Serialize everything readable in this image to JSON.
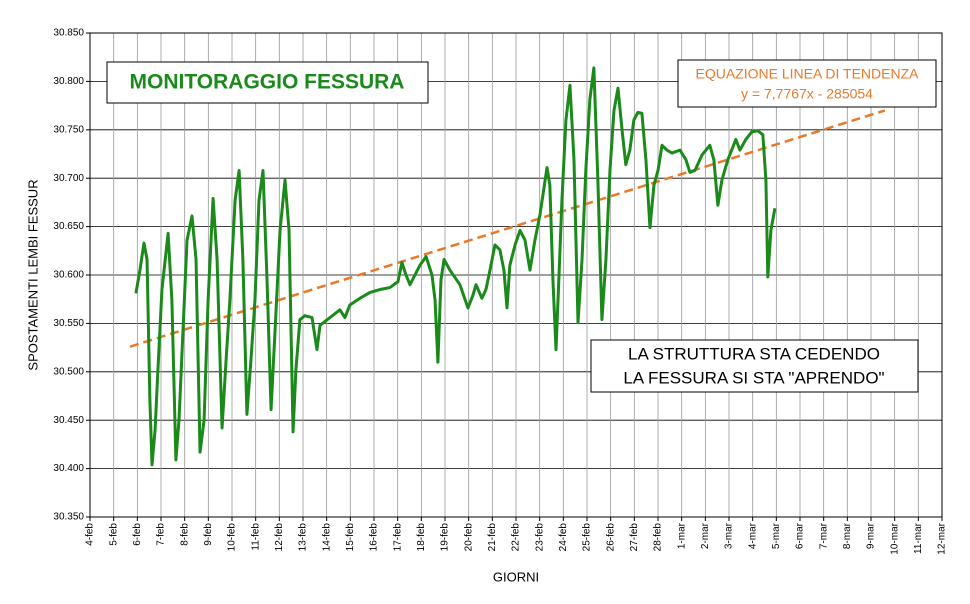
{
  "chart_data": {
    "type": "line",
    "title": "MONITORAGGIO FESSURA",
    "xlabel": "GIORNI",
    "ylabel": "SPOSTAMENTI LEMBI FESSUR",
    "annotations": {
      "equation_title": "EQUAZIONE LINEA DI TENDENZA",
      "equation": "y = 7,7767x - 285054",
      "note_line1": "LA STRUTTURA STA CEDENDO",
      "note_line2": "LA FESSURA SI STA \"APRENDO\""
    },
    "color": "#1a8a1a",
    "x": [
      1.94,
      2.11,
      2.28,
      2.41,
      2.53,
      2.62,
      2.75,
      2.87,
      3.04,
      3.3,
      3.46,
      3.63,
      3.76,
      3.93,
      4.1,
      4.31,
      4.48,
      4.65,
      4.82,
      4.99,
      5.2,
      5.37,
      5.58,
      5.75,
      5.91,
      6.13,
      6.3,
      6.46,
      6.63,
      6.8,
      6.97,
      7.14,
      7.31,
      7.48,
      7.65,
      7.82,
      8.03,
      8.24,
      8.41,
      8.58,
      8.7,
      8.87,
      9.08,
      9.38,
      9.59,
      9.72,
      10.14,
      10.56,
      10.77,
      10.98,
      11.41,
      11.83,
      12.25,
      12.67,
      13.01,
      13.18,
      13.35,
      13.52,
      13.73,
      13.94,
      14.2,
      14.45,
      14.58,
      14.7,
      14.83,
      14.96,
      15.21,
      15.63,
      15.97,
      16.18,
      16.31,
      16.56,
      16.73,
      16.9,
      17.11,
      17.32,
      17.49,
      17.62,
      17.74,
      17.96,
      18.17,
      18.38,
      18.59,
      18.8,
      19.01,
      19.14,
      19.31,
      19.43,
      19.56,
      19.69,
      19.81,
      19.94,
      20.11,
      20.28,
      20.45,
      20.62,
      20.79,
      20.95,
      21.12,
      21.29,
      21.46,
      21.63,
      21.8,
      21.97,
      22.14,
      22.31,
      22.48,
      22.64,
      22.81,
      22.98,
      23.15,
      23.32,
      23.49,
      23.66,
      23.83,
      24.0,
      24.17,
      24.38,
      24.59,
      24.93,
      25.18,
      25.35,
      25.56,
      25.86,
      26.19,
      26.36,
      26.53,
      26.7,
      26.95,
      27.29,
      27.46,
      27.71,
      27.97,
      28.22,
      28.43,
      28.56,
      28.64,
      28.77,
      28.94
    ],
    "values": [
      30.581,
      30.605,
      30.633,
      30.616,
      30.471,
      30.404,
      30.44,
      30.502,
      30.585,
      30.643,
      30.574,
      30.409,
      30.45,
      30.543,
      30.636,
      30.661,
      30.616,
      30.417,
      30.45,
      30.574,
      30.679,
      30.616,
      30.442,
      30.512,
      30.574,
      30.677,
      30.708,
      30.616,
      30.456,
      30.512,
      30.574,
      30.677,
      30.708,
      30.595,
      30.461,
      30.543,
      30.646,
      30.698,
      30.646,
      30.438,
      30.502,
      30.554,
      30.558,
      30.556,
      30.523,
      30.548,
      30.556,
      30.564,
      30.556,
      30.569,
      30.576,
      30.582,
      30.585,
      30.587,
      30.593,
      30.613,
      30.6,
      30.59,
      30.6,
      30.61,
      30.619,
      30.6,
      30.574,
      30.51,
      30.595,
      30.616,
      30.605,
      30.59,
      30.566,
      30.579,
      30.59,
      30.576,
      30.585,
      30.605,
      30.631,
      30.626,
      30.605,
      30.566,
      30.61,
      30.631,
      30.646,
      30.636,
      30.605,
      30.636,
      30.662,
      30.683,
      30.711,
      30.693,
      30.595,
      30.523,
      30.595,
      30.677,
      30.76,
      30.796,
      30.719,
      30.551,
      30.616,
      30.708,
      30.781,
      30.814,
      30.698,
      30.554,
      30.616,
      30.708,
      30.77,
      30.793,
      30.75,
      30.714,
      30.729,
      30.76,
      30.768,
      30.767,
      30.719,
      30.649,
      30.693,
      30.708,
      30.734,
      30.729,
      30.726,
      30.729,
      30.719,
      30.706,
      30.708,
      30.724,
      30.734,
      30.719,
      30.672,
      30.698,
      30.719,
      30.74,
      30.729,
      30.74,
      30.748,
      30.749,
      30.745,
      30.698,
      30.598,
      30.646,
      30.669
    ],
    "trendline": {
      "color": "#e8792a",
      "x": [
        1.69,
        33.59
      ],
      "values": [
        30.526,
        30.77
      ]
    },
    "xlim": [
      0,
      36
    ],
    "xticks": [
      {
        "value": 0,
        "label": "4-feb"
      },
      {
        "value": 1,
        "label": "5-feb"
      },
      {
        "value": 2,
        "label": "6-feb"
      },
      {
        "value": 3,
        "label": "7-feb"
      },
      {
        "value": 4,
        "label": "8-feb"
      },
      {
        "value": 5,
        "label": "9-feb"
      },
      {
        "value": 6,
        "label": "10-feb"
      },
      {
        "value": 7,
        "label": "11-feb"
      },
      {
        "value": 8,
        "label": "12-feb"
      },
      {
        "value": 9,
        "label": "13-feb"
      },
      {
        "value": 10,
        "label": "14-feb"
      },
      {
        "value": 11,
        "label": "15-feb"
      },
      {
        "value": 12,
        "label": "16-feb"
      },
      {
        "value": 13,
        "label": "17-feb"
      },
      {
        "value": 14,
        "label": "18-feb"
      },
      {
        "value": 15,
        "label": "19-feb"
      },
      {
        "value": 16,
        "label": "20-feb"
      },
      {
        "value": 17,
        "label": "21-feb"
      },
      {
        "value": 18,
        "label": "22-feb"
      },
      {
        "value": 19,
        "label": "23-feb"
      },
      {
        "value": 20,
        "label": "24-feb"
      },
      {
        "value": 21,
        "label": "25-feb"
      },
      {
        "value": 22,
        "label": "26-feb"
      },
      {
        "value": 23,
        "label": "27-feb"
      },
      {
        "value": 24,
        "label": "28-feb"
      },
      {
        "value": 25,
        "label": "1-mar"
      },
      {
        "value": 26,
        "label": "2-mar"
      },
      {
        "value": 27,
        "label": "3-mar"
      },
      {
        "value": 28,
        "label": "4-mar"
      },
      {
        "value": 29,
        "label": "5-mar"
      },
      {
        "value": 30,
        "label": "6-mar"
      },
      {
        "value": 31,
        "label": "7-mar"
      },
      {
        "value": 32,
        "label": "8-mar"
      },
      {
        "value": 33,
        "label": "9-mar"
      },
      {
        "value": 34,
        "label": "10-mar"
      },
      {
        "value": 35,
        "label": "11-mar"
      },
      {
        "value": 36,
        "label": "12-mar"
      }
    ],
    "ylim": [
      30.35,
      30.85
    ],
    "yticks": [
      {
        "value": 30.35,
        "label": "30.350"
      },
      {
        "value": 30.4,
        "label": "30.400"
      },
      {
        "value": 30.45,
        "label": "30.450"
      },
      {
        "value": 30.5,
        "label": "30.500"
      },
      {
        "value": 30.55,
        "label": "30.550"
      },
      {
        "value": 30.6,
        "label": "30.600"
      },
      {
        "value": 30.65,
        "label": "30.650"
      },
      {
        "value": 30.7,
        "label": "30.700"
      },
      {
        "value": 30.75,
        "label": "30.750"
      },
      {
        "value": 30.8,
        "label": "30.800"
      },
      {
        "value": 30.85,
        "label": "30.850"
      }
    ],
    "grid": true
  }
}
